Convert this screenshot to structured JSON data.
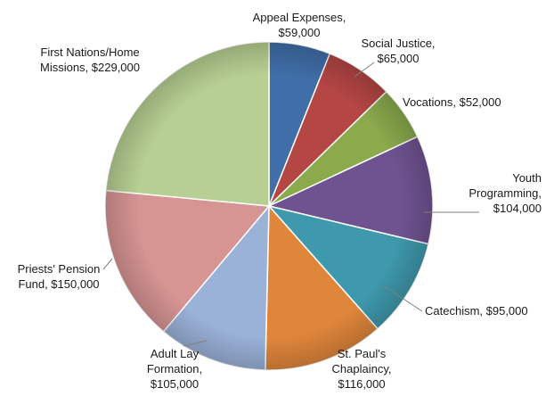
{
  "chart_data": {
    "type": "pie",
    "title": "",
    "start_angle_deg": 0,
    "direction": "clockwise",
    "slices": [
      {
        "name": "Appeal Expenses",
        "value": 59000,
        "color": "#3f6ea8",
        "label_lines": [
          "Appeal Expenses,",
          "$59,000"
        ]
      },
      {
        "name": "Social Justice",
        "value": 65000,
        "color": "#b44644",
        "label_lines": [
          "Social Justice,",
          "$65,000"
        ]
      },
      {
        "name": "Vocations",
        "value": 52000,
        "color": "#8aaa4c",
        "label_lines": [
          "Vocations,  $52,000"
        ]
      },
      {
        "name": "Youth Programming",
        "value": 104000,
        "color": "#6f5391",
        "label_lines": [
          "Youth",
          "Programming,",
          "$104,000"
        ]
      },
      {
        "name": "Catechism",
        "value": 95000,
        "color": "#3f99ad",
        "label_lines": [
          "Catechism,  $95,000"
        ]
      },
      {
        "name": "St. Paul's Chaplaincy",
        "value": 116000,
        "color": "#e0863b",
        "label_lines": [
          "St. Paul's",
          "Chaplaincy,",
          "$116,000"
        ]
      },
      {
        "name": "Adult Lay Formation",
        "value": 105000,
        "color": "#9ab1d8",
        "label_lines": [
          "Adult Lay",
          "Formation,",
          "$105,000"
        ]
      },
      {
        "name": "Priests' Pension Fund",
        "value": 150000,
        "color": "#d69493",
        "label_lines": [
          "Priests' Pension",
          "Fund,  $150,000"
        ]
      },
      {
        "name": "First Nations/Home Missions",
        "value": 229000,
        "color": "#b7cf92",
        "label_lines": [
          "First Nations/Home",
          "Missions,  $229,000"
        ]
      }
    ]
  }
}
